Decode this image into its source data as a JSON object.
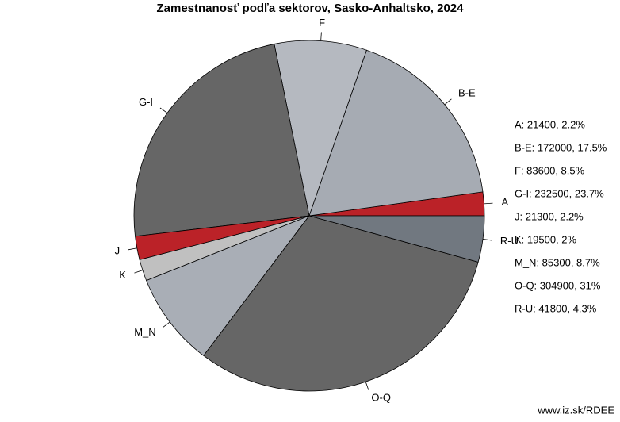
{
  "chart_data": {
    "type": "pie",
    "title": "Zamestnanosť podľa sektorov, Sasko-Anhaltsko, 2024",
    "categories": [
      "A",
      "B-E",
      "F",
      "G-I",
      "J",
      "K",
      "M_N",
      "O-Q",
      "R-U"
    ],
    "values": [
      21400,
      172000,
      83600,
      232500,
      21300,
      19500,
      85300,
      304900,
      41800
    ],
    "value_labels": [
      "A: 21400, 2.2%",
      "B-E: 172000, 17.5%",
      "F: 83600, 8.5%",
      "G-I: 232500, 23.7%",
      "J: 21300, 2.2%",
      "K: 19500, 2%",
      "M_N: 85300, 8.7%",
      "O-Q: 304900, 31%",
      "R-U: 41800, 4.3%"
    ],
    "colors": [
      "#bb2228",
      "#a6abb3",
      "#b5b9c0",
      "#666666",
      "#bb2228",
      "#c0c0c0",
      "#a9aeb6",
      "#666666",
      "#717880"
    ],
    "source": "www.iz.sk/RDEE"
  }
}
